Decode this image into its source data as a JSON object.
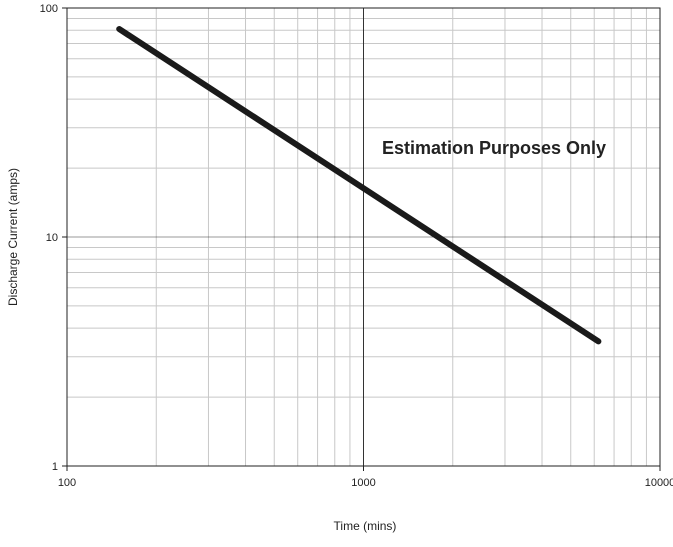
{
  "chart_data": {
    "type": "line",
    "title": "",
    "xlabel": "Time (mins)",
    "ylabel": "Discharge Current (amps)",
    "xscale": "log",
    "yscale": "log",
    "xlim": [
      100,
      10000
    ],
    "ylim": [
      1,
      100
    ],
    "grid": true,
    "x_tick_labels": [
      "100",
      "1000",
      "10000"
    ],
    "y_tick_labels": [
      "1",
      "10",
      "100"
    ],
    "annotation": "Estimation Purposes Only",
    "series": [
      {
        "x": [
          150,
          6200
        ],
        "y": [
          81,
          3.5
        ],
        "color": "#1a1a1a"
      }
    ],
    "colors": {
      "major_grid": "#333333",
      "minor_grid": "#c8c8c8",
      "axis": "#222222",
      "line": "#1a1a1a"
    }
  }
}
